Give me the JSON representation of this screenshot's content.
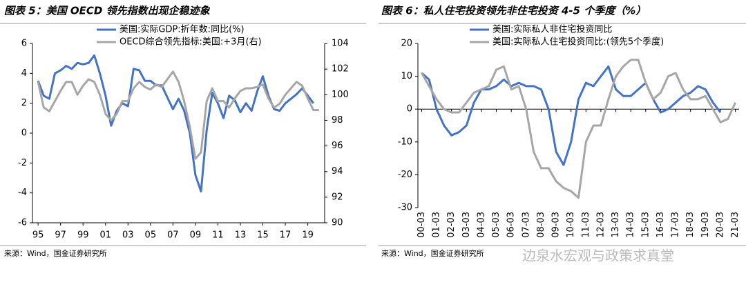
{
  "chart_data": [
    {
      "type": "line",
      "title": "图表 5：美国 OECD 领先指数出现企稳迹象",
      "source": "来源：Wind，国金证券研究所",
      "x": [
        1995,
        1995.5,
        1996,
        1996.5,
        1997,
        1997.5,
        1998,
        1998.5,
        1999,
        1999.5,
        2000,
        2000.5,
        2001,
        2001.5,
        2002,
        2002.5,
        2003,
        2003.5,
        2004,
        2004.5,
        2005,
        2005.5,
        2006,
        2006.5,
        2007,
        2007.5,
        2008,
        2008.5,
        2009,
        2009.5,
        2010,
        2010.5,
        2011,
        2011.5,
        2012,
        2012.5,
        2013,
        2013.5,
        2014,
        2014.5,
        2015,
        2015.5,
        2016,
        2016.5,
        2017,
        2017.5,
        2018,
        2018.5,
        2019,
        2019.5,
        2020
      ],
      "xlim": [
        1994.5,
        2020.5
      ],
      "xticks": [
        {
          "value": 1995,
          "label": "95"
        },
        {
          "value": 1997,
          "label": "97"
        },
        {
          "value": 1999,
          "label": "99"
        },
        {
          "value": 2001,
          "label": "01"
        },
        {
          "value": 2003,
          "label": "03"
        },
        {
          "value": 2005,
          "label": "05"
        },
        {
          "value": 2007,
          "label": "07"
        },
        {
          "value": 2009,
          "label": "09"
        },
        {
          "value": 2011,
          "label": "11"
        },
        {
          "value": 2013,
          "label": "13"
        },
        {
          "value": 2015,
          "label": "15"
        },
        {
          "value": 2017,
          "label": "17"
        },
        {
          "value": 2019,
          "label": "19"
        }
      ],
      "ylim": [
        -6,
        6
      ],
      "yticks": [
        -6,
        -4,
        -2,
        0,
        2,
        4,
        6
      ],
      "y2lim": [
        90,
        104
      ],
      "y2ticks": [
        90,
        92,
        94,
        96,
        98,
        100,
        102,
        104
      ],
      "series": [
        {
          "name": "美国:实际GDP:折年数:同比(%)",
          "color": "#4472c4",
          "values": [
            3.5,
            2.5,
            2.3,
            4.0,
            4.2,
            4.5,
            4.3,
            4.7,
            4.6,
            4.7,
            5.2,
            4.0,
            2.5,
            0.5,
            1.5,
            2.0,
            1.8,
            4.3,
            4.2,
            3.5,
            3.5,
            3.2,
            3.2,
            2.4,
            1.6,
            2.3,
            1.5,
            0,
            -2.8,
            -3.9,
            0.2,
            2.7,
            2.0,
            1.0,
            2.5,
            2.2,
            1.4,
            2.0,
            1.5,
            2.8,
            3.8,
            2.5,
            1.6,
            1.5,
            2.0,
            2.3,
            2.6,
            3.0,
            2.5,
            2.0,
            null
          ]
        },
        {
          "name": "OECD综合领先指标:美国:+3月(右)",
          "color": "#a6a6a6",
          "axis": "y2",
          "values": [
            101,
            99,
            98.7,
            99.5,
            100.3,
            101,
            101,
            100,
            100.7,
            101.2,
            101,
            100,
            98.5,
            98,
            98.5,
            99.5,
            99.5,
            100.5,
            101,
            100.6,
            100.4,
            100.8,
            100.6,
            101.2,
            101.8,
            101,
            99.5,
            97.5,
            95,
            95.5,
            99.5,
            100.5,
            99.5,
            99.5,
            99,
            99.7,
            100.3,
            100.5,
            100.5,
            100.6,
            100.8,
            99.7,
            99,
            99.3,
            100,
            100.5,
            101,
            100.7,
            99.7,
            98.8,
            98.8
          ]
        }
      ]
    },
    {
      "type": "line",
      "title": "图表 6：私人住宅投资领先非住宅投资 4-5 个季度（%）",
      "source": "来源：Wind，国金证券研究所",
      "categories": [
        "00-03",
        null,
        "01-03",
        null,
        "02-03",
        null,
        "03-03",
        null,
        "04-03",
        null,
        "05-03",
        null,
        "06-03",
        null,
        "07-03",
        null,
        "08-03",
        null,
        "09-03",
        null,
        "10-03",
        null,
        "11-03",
        null,
        "12-03",
        null,
        "13-03",
        null,
        "14-03",
        null,
        "15-03",
        null,
        "16-03",
        null,
        "17-03",
        null,
        "18-03",
        null,
        "19-03",
        null,
        "20-03",
        null,
        "21-03"
      ],
      "ylim": [
        -30,
        20
      ],
      "yticks": [
        -30,
        -20,
        -10,
        0,
        10,
        20
      ],
      "series": [
        {
          "name": "美国:实际私人非住宅投资同比",
          "color": "#4472c4",
          "values": [
            11,
            9,
            0,
            -5,
            -8,
            -7,
            -5,
            2,
            6,
            6,
            7,
            9,
            7,
            8,
            7,
            7,
            6,
            0,
            -13,
            -17,
            -10,
            3,
            8,
            7,
            10,
            13,
            6,
            4,
            4,
            6,
            8,
            3,
            -1,
            0,
            2,
            4,
            5,
            7,
            6,
            2,
            -1,
            null,
            null
          ]
        },
        {
          "name": "美国:实际私人住宅投资同比:(领先5个季度)",
          "color": "#a6a6a6",
          "values": [
            11,
            7,
            3,
            0,
            -1,
            -1,
            2,
            5,
            6,
            7,
            12,
            13,
            6,
            7,
            0,
            -13,
            -18,
            -18,
            -22,
            -24,
            -25,
            -27,
            -10,
            -5,
            -5,
            3,
            10,
            13,
            15,
            15,
            8,
            3,
            5,
            10,
            11,
            6,
            3,
            3,
            4,
            0,
            -4,
            -3,
            2
          ]
        }
      ]
    }
  ],
  "watermark": "边泉水宏观与政策求真堂"
}
